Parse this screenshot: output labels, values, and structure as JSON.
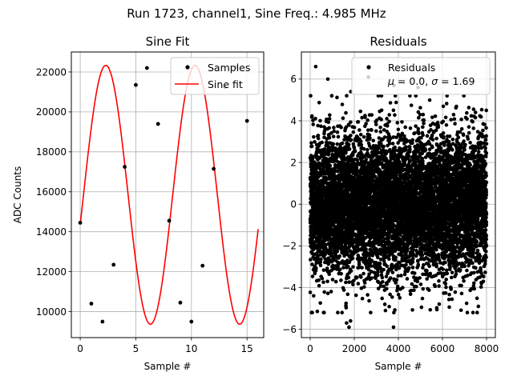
{
  "figure": {
    "suptitle": "Run 1723, channel1, Sine Freq.: 4.985 MHz"
  },
  "chart_data": [
    {
      "type": "line",
      "title": "Sine Fit",
      "xlabel": "Sample #",
      "ylabel": "ADC Counts",
      "xlim": [
        -0.8,
        16.5
      ],
      "ylim": [
        8700,
        23000
      ],
      "xticks": [
        0,
        5,
        10,
        15
      ],
      "yticks": [
        10000,
        12000,
        14000,
        16000,
        18000,
        20000,
        22000
      ],
      "grid": true,
      "legend": {
        "placement": "upper right",
        "entries": [
          {
            "label": "Samples",
            "marker": "dot",
            "color": "#000000"
          },
          {
            "label": "Sine fit",
            "marker": "line",
            "color": "#ff0000"
          }
        ]
      },
      "series": [
        {
          "name": "Samples",
          "style": "scatter",
          "color": "#000000",
          "x": [
            0,
            1,
            2,
            3,
            4,
            5,
            6,
            7,
            8,
            9,
            10,
            11,
            12,
            13,
            14,
            15
          ],
          "y": [
            14450,
            10400,
            9500,
            12350,
            17250,
            21350,
            22200,
            19400,
            14550,
            10450,
            9500,
            12300,
            17150,
            21250,
            22250,
            19550
          ]
        },
        {
          "name": "Sine fit",
          "style": "line",
          "color": "#ff0000",
          "x_range": [
            0,
            16
          ],
          "model": {
            "offset": 15850,
            "amplitude": 6480,
            "period": 8.024,
            "phase": -0.2305
          }
        }
      ]
    },
    {
      "type": "scatter",
      "title": "Residuals",
      "xlabel": "Sample #",
      "ylabel": "",
      "xlim": [
        -400,
        8400
      ],
      "ylim": [
        -6.4,
        7.3
      ],
      "xticks": [
        0,
        2000,
        4000,
        6000,
        8000
      ],
      "yticks": [
        -6,
        -4,
        -2,
        0,
        2,
        4,
        6
      ],
      "grid": true,
      "legend": {
        "placement": "upper right",
        "entries": [
          {
            "label": "Residuals",
            "marker": "dot",
            "color": "#000000"
          }
        ],
        "note": "μ = 0.0, σ = 1.69"
      },
      "stats": {
        "mean": 0.0,
        "std": 1.69,
        "n_points": 8000,
        "x_range": [
          0,
          7999
        ]
      },
      "series": [
        {
          "name": "Residuals",
          "color": "#000000",
          "x_outliers": [
            250,
            800,
            1650,
            1760,
            2640,
            3780,
            4890,
            7990,
            1840,
            1830,
            1250,
            3800
          ],
          "y_outliers": [
            6.6,
            6.0,
            -5.7,
            -5.9,
            6.1,
            -5.9,
            5.6,
            4.5,
            5.4,
            -5.6,
            -5.2,
            5.7
          ]
        }
      ]
    }
  ]
}
